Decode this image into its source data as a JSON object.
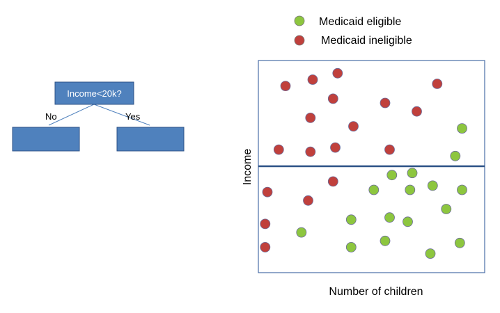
{
  "tree": {
    "root_label": "Income<20k?",
    "left_edge_label": "No",
    "right_edge_label": "Yes"
  },
  "legend": [
    {
      "label": "Medicaid eligible",
      "color": "#8dc63f"
    },
    {
      "label": "Medicaid ineligible",
      "color": "#c0403c"
    }
  ],
  "colors": {
    "node_fill": "#4f81bd",
    "node_stroke": "#2c5186",
    "divider": "#2c5186",
    "plot_border": "#4a6da7",
    "eligible": "#8dc63f",
    "ineligible": "#c0403c"
  },
  "chart_data": {
    "type": "scatter",
    "xlabel": "Number of children",
    "ylabel": "Income",
    "grid": false,
    "legend_position": "top",
    "divider_note": "horizontal split line at mid-height of plot",
    "series": [
      {
        "name": "Medicaid ineligible",
        "points": [
          [
            0.12,
            0.12
          ],
          [
            0.24,
            0.09
          ],
          [
            0.35,
            0.06
          ],
          [
            0.33,
            0.18
          ],
          [
            0.56,
            0.2
          ],
          [
            0.7,
            0.24
          ],
          [
            0.79,
            0.11
          ],
          [
            0.23,
            0.27
          ],
          [
            0.42,
            0.31
          ],
          [
            0.09,
            0.42
          ],
          [
            0.23,
            0.43
          ],
          [
            0.34,
            0.41
          ],
          [
            0.58,
            0.42
          ],
          [
            0.33,
            0.57
          ],
          [
            0.04,
            0.62
          ],
          [
            0.22,
            0.66
          ],
          [
            0.03,
            0.77
          ],
          [
            0.03,
            0.88
          ]
        ]
      },
      {
        "name": "Medicaid eligible",
        "points": [
          [
            0.9,
            0.32
          ],
          [
            0.87,
            0.45
          ],
          [
            0.59,
            0.54
          ],
          [
            0.68,
            0.53
          ],
          [
            0.51,
            0.61
          ],
          [
            0.67,
            0.61
          ],
          [
            0.77,
            0.59
          ],
          [
            0.9,
            0.61
          ],
          [
            0.83,
            0.7
          ],
          [
            0.19,
            0.81
          ],
          [
            0.41,
            0.75
          ],
          [
            0.58,
            0.74
          ],
          [
            0.66,
            0.76
          ],
          [
            0.41,
            0.88
          ],
          [
            0.56,
            0.85
          ],
          [
            0.89,
            0.86
          ],
          [
            0.76,
            0.91
          ]
        ]
      }
    ]
  }
}
